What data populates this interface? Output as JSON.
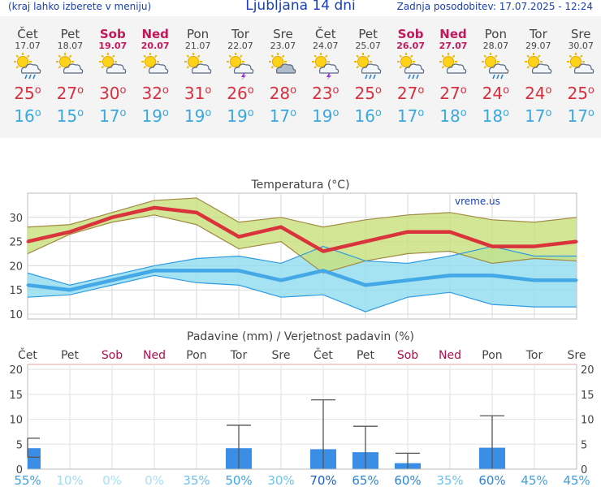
{
  "header": {
    "hint": "(kraj lahko izberete v meniju)",
    "title": "Ljubljana 14 dni",
    "updated": "Zadnja posodobitev: 17.07.2025 - 12:24"
  },
  "days": [
    {
      "name": "Čet",
      "date": "17.07",
      "weekend": false,
      "icon": "sun-cloud-rain-icon",
      "max": "25",
      "min": "16"
    },
    {
      "name": "Pet",
      "date": "18.07",
      "weekend": false,
      "icon": "sun-cloud-icon",
      "max": "27",
      "min": "15"
    },
    {
      "name": "Sob",
      "date": "19.07",
      "weekend": true,
      "icon": "sun-cloud-icon",
      "max": "30",
      "min": "17"
    },
    {
      "name": "Ned",
      "date": "20.07",
      "weekend": true,
      "icon": "sun-cloud-icon",
      "max": "32",
      "min": "19"
    },
    {
      "name": "Pon",
      "date": "21.07",
      "weekend": false,
      "icon": "sun-cloud-icon",
      "max": "31",
      "min": "19"
    },
    {
      "name": "Tor",
      "date": "22.07",
      "weekend": false,
      "icon": "sun-cloud-storm-icon",
      "max": "26",
      "min": "19"
    },
    {
      "name": "Sre",
      "date": "23.07",
      "weekend": false,
      "icon": "sun-cloud-heavy-icon",
      "max": "28",
      "min": "17"
    },
    {
      "name": "Čet",
      "date": "24.07",
      "weekend": false,
      "icon": "sun-cloud-storm-icon",
      "max": "23",
      "min": "19"
    },
    {
      "name": "Pet",
      "date": "25.07",
      "weekend": false,
      "icon": "sun-cloud-rain-icon",
      "max": "25",
      "min": "16"
    },
    {
      "name": "Sob",
      "date": "26.07",
      "weekend": true,
      "icon": "sun-cloud-rain-icon",
      "max": "27",
      "min": "17"
    },
    {
      "name": "Ned",
      "date": "27.07",
      "weekend": true,
      "icon": "sun-cloud-icon",
      "max": "27",
      "min": "18"
    },
    {
      "name": "Pon",
      "date": "28.07",
      "weekend": false,
      "icon": "sun-cloud-rain-icon",
      "max": "24",
      "min": "18"
    },
    {
      "name": "Tor",
      "date": "29.07",
      "weekend": false,
      "icon": "sun-cloud-icon",
      "max": "24",
      "min": "17"
    },
    {
      "name": "Sre",
      "date": "30.07",
      "weekend": false,
      "icon": "sun-cloud-icon",
      "max": "25",
      "min": "17"
    }
  ],
  "chart_data": [
    {
      "type": "line",
      "title": "Temperatura (°C)",
      "watermark": "vreme.us",
      "categories": [
        "17.07",
        "18.07",
        "19.07",
        "20.07",
        "21.07",
        "22.07",
        "23.07",
        "24.07",
        "25.07",
        "26.07",
        "27.07",
        "28.07",
        "29.07",
        "30.07"
      ],
      "ylim": [
        9,
        35
      ],
      "yticks": [
        10,
        15,
        20,
        25,
        30
      ],
      "series": [
        {
          "name": "max",
          "color": "#d9343c",
          "values": [
            25,
            27,
            30,
            32,
            31,
            26,
            28,
            23,
            25,
            27,
            27,
            24,
            24,
            25
          ]
        },
        {
          "name": "min",
          "color": "#44a8e6",
          "values": [
            16,
            15,
            17,
            19,
            19,
            19,
            17,
            19,
            16,
            17,
            18,
            18,
            17,
            17
          ]
        }
      ],
      "max_band": {
        "color": "#c8e07a",
        "upper": [
          28,
          28.5,
          31,
          33.5,
          34,
          29,
          30,
          28,
          29.5,
          30.5,
          31,
          29.5,
          29,
          30
        ],
        "lower": [
          22.5,
          26.5,
          29,
          30.5,
          28.5,
          23.5,
          25,
          18.5,
          21,
          22.5,
          23,
          20.5,
          21.5,
          21
        ]
      },
      "min_band": {
        "color": "#8fdcf0",
        "upper": [
          18.5,
          16,
          18,
          20,
          21.5,
          22,
          20.5,
          24,
          21,
          20.5,
          22,
          24,
          22,
          22
        ],
        "lower": [
          13.5,
          14,
          16,
          18,
          16.5,
          16,
          13.5,
          14,
          10.5,
          13.5,
          14.5,
          12,
          11.5,
          11.5
        ]
      }
    },
    {
      "type": "bar",
      "title": "Padavine (mm) / Verjetnost padavin (%)",
      "categories": [
        "Čet",
        "Pet",
        "Sob",
        "Ned",
        "Pon",
        "Tor",
        "Sre",
        "Čet",
        "Pet",
        "Sob",
        "Ned",
        "Pon",
        "Tor",
        "Sre"
      ],
      "weekend": [
        false,
        false,
        true,
        true,
        false,
        false,
        false,
        false,
        false,
        true,
        true,
        false,
        false,
        false
      ],
      "ylim": [
        0,
        21
      ],
      "yticks": [
        0,
        5,
        10,
        15,
        20
      ],
      "values": [
        4.2,
        0,
        0,
        0,
        0,
        4.2,
        0,
        4.0,
        3.4,
        1.2,
        0,
        4.3,
        0,
        0
      ],
      "error_high": [
        6.2,
        0,
        0,
        0,
        0,
        8.8,
        0,
        13.9,
        8.6,
        3.2,
        0,
        10.7,
        0,
        0
      ],
      "error_low": [
        2.4,
        0,
        0,
        0,
        0,
        0,
        0,
        0,
        0,
        0,
        0,
        0,
        0,
        0
      ],
      "probabilities": [
        "55%",
        "10%",
        "0%",
        "0%",
        "35%",
        "50%",
        "30%",
        "70%",
        "65%",
        "60%",
        "35%",
        "60%",
        "45%",
        "45%"
      ],
      "bar_color": "#3a8ee6"
    }
  ]
}
